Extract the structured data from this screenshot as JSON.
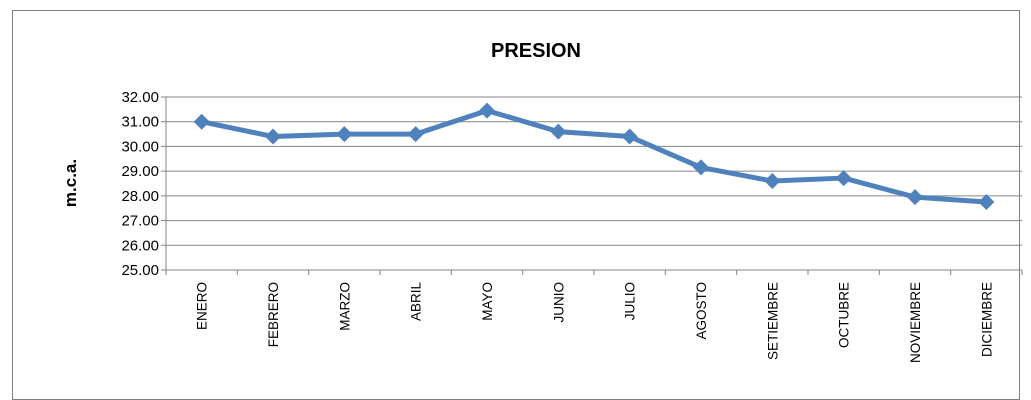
{
  "chart_data": {
    "type": "line",
    "title": "PRESION",
    "xlabel": "",
    "ylabel": "m.c.a.",
    "ylim": [
      25,
      32
    ],
    "ytick_step": 1,
    "ytick_labels": [
      "25.00",
      "26.00",
      "27.00",
      "28.00",
      "29.00",
      "30.00",
      "31.00",
      "32.00"
    ],
    "categories": [
      "ENERO",
      "FEBRERO",
      "MARZO",
      "ABRIL",
      "MAYO",
      "JUNIO",
      "JULIO",
      "AGOSTO",
      "SETIEMBRE",
      "OCTUBRE",
      "NOVIEMBRE",
      "DICIEMBRE"
    ],
    "series": [
      {
        "values": [
          31.0,
          30.4,
          30.5,
          30.5,
          31.45,
          30.6,
          30.4,
          29.15,
          28.6,
          28.72,
          27.95,
          27.75
        ],
        "color": "#4f81bd",
        "marker": "diamond"
      }
    ],
    "grid": true,
    "legend": "none"
  }
}
